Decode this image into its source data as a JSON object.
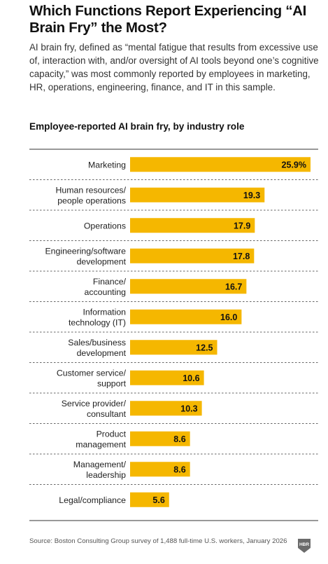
{
  "header": {
    "title": "Which Functions Report Experiencing “AI Brain Fry” the Most?",
    "subtitle": "AI brain fry, defined as “mental fatigue that results from excessive use of, interaction with, and/or oversight of AI tools beyond one’s cognitive capacity,” was most commonly reported by employees in marketing, HR, operations, engineering, finance, and IT in this sample."
  },
  "chart_data": {
    "type": "bar",
    "orientation": "horizontal",
    "title": "Employee-reported AI brain fry, by industry role",
    "categories": [
      [
        "Marketing"
      ],
      [
        "Human resources/",
        "people operations"
      ],
      [
        "Operations"
      ],
      [
        "Engineering/software",
        "development"
      ],
      [
        "Finance/",
        "accounting"
      ],
      [
        "Information",
        "technology (IT)"
      ],
      [
        "Sales/business",
        "development"
      ],
      [
        "Customer service/",
        "support"
      ],
      [
        "Service provider/",
        "consultant"
      ],
      [
        "Product",
        "management"
      ],
      [
        "Management/",
        "leadership"
      ],
      [
        "Legal/compliance"
      ]
    ],
    "values": [
      25.9,
      19.3,
      17.9,
      17.8,
      16.7,
      16.0,
      12.5,
      10.6,
      10.3,
      8.6,
      8.6,
      5.6
    ],
    "value_labels": [
      "25.9%",
      "19.3",
      "17.9",
      "17.8",
      "16.7",
      "16.0",
      "12.5",
      "10.6",
      "10.3",
      "8.6",
      "8.6",
      "5.6"
    ],
    "bar_color": "#F5B700",
    "grid": false,
    "row_separators": "dashed"
  },
  "footer": {
    "source": "Source: Boston Consulting Group survey of 1,488 full-time U.S. workers, January 2026",
    "logo_text": "HBR"
  }
}
